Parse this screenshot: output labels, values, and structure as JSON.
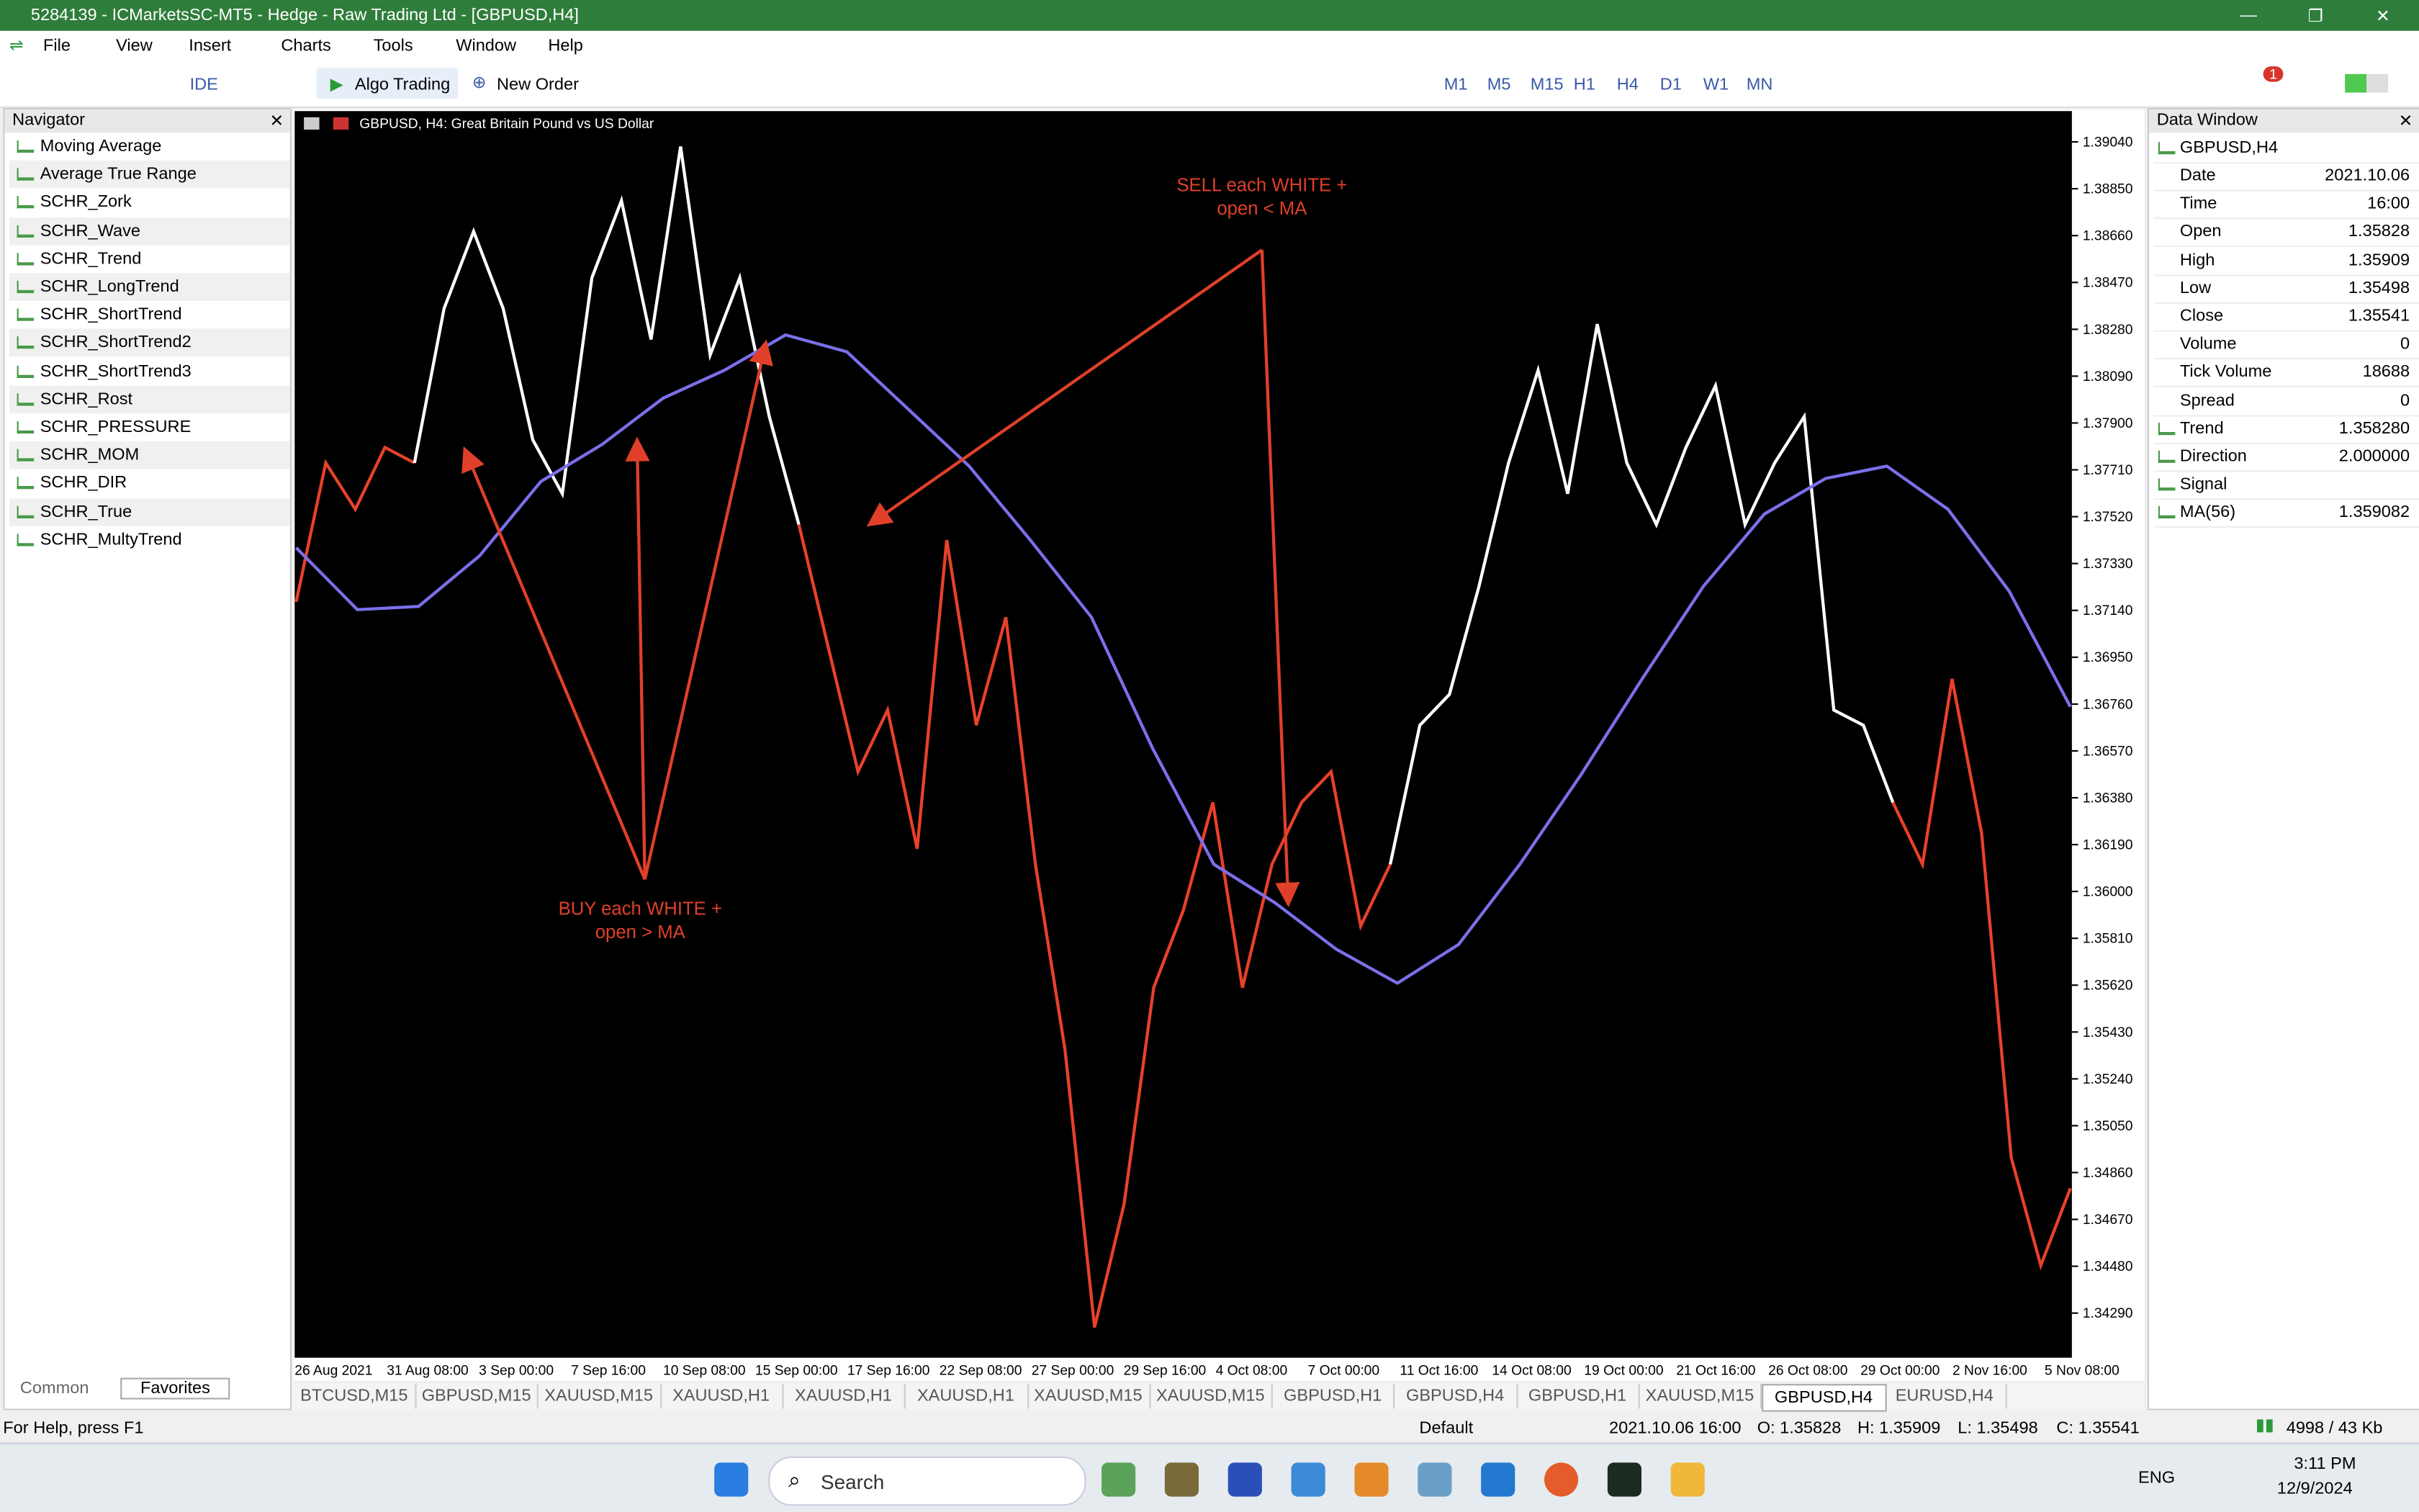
{
  "window": {
    "title": "5284139 - ICMarketsSC-MT5 - Hedge - Raw Trading Ltd - [GBPUSD,H4]"
  },
  "menu": [
    "File",
    "View",
    "Insert",
    "Charts",
    "Tools",
    "Window",
    "Help"
  ],
  "toolbar": {
    "ide": "IDE",
    "algo": "Algo Trading",
    "order": "New Order",
    "timeframes": [
      "M1",
      "M5",
      "M15",
      "H1",
      "H4",
      "D1",
      "W1",
      "MN"
    ],
    "notifications": 1
  },
  "navigator": {
    "title": "Navigator",
    "items": [
      "Moving Average",
      "Average True Range",
      "SCHR_Zork",
      "SCHR_Wave",
      "SCHR_Trend",
      "SCHR_LongTrend",
      "SCHR_ShortTrend",
      "SCHR_ShortTrend2",
      "SCHR_ShortTrend3",
      "SCHR_Rost",
      "SCHR_PRESSURE",
      "SCHR_MOM",
      "SCHR_DIR",
      "SCHR_True",
      "SCHR_MultyTrend"
    ],
    "tabs": [
      "Common",
      "Favorites"
    ]
  },
  "chart": {
    "header": "GBPUSD, H4:  Great Britain Pound vs US Dollar",
    "sell_note": [
      "SELL each WHITE +",
      "open < MA"
    ],
    "buy_note": [
      "BUY each WHITE +",
      "open > MA"
    ],
    "ylim": [
      1.34109,
      1.39165
    ],
    "yticks": [
      {
        "value": 1.3904,
        "label": "1.39040"
      },
      {
        "value": 1.3885,
        "label": "1.38850"
      },
      {
        "value": 1.3866,
        "label": "1.38660"
      },
      {
        "value": 1.3847,
        "label": "1.38470"
      },
      {
        "value": 1.3828,
        "label": "1.38280"
      },
      {
        "value": 1.3809,
        "label": "1.38090"
      },
      {
        "value": 1.379,
        "label": "1.37900"
      },
      {
        "value": 1.3771,
        "label": "1.37710"
      },
      {
        "value": 1.3752,
        "label": "1.37520"
      },
      {
        "value": 1.3733,
        "label": "1.37330"
      },
      {
        "value": 1.3714,
        "label": "1.37140"
      },
      {
        "value": 1.3695,
        "label": "1.36950"
      },
      {
        "value": 1.3676,
        "label": "1.36760"
      },
      {
        "value": 1.3657,
        "label": "1.36570"
      },
      {
        "value": 1.3638,
        "label": "1.36380"
      },
      {
        "value": 1.3619,
        "label": "1.36190"
      },
      {
        "value": 1.36,
        "label": "1.36000"
      },
      {
        "value": 1.3581,
        "label": "1.35810"
      },
      {
        "value": 1.3562,
        "label": "1.35620"
      },
      {
        "value": 1.3543,
        "label": "1.35430"
      },
      {
        "value": 1.3524,
        "label": "1.35240"
      },
      {
        "value": 1.3505,
        "label": "1.35050"
      },
      {
        "value": 1.3486,
        "label": "1.34860"
      },
      {
        "value": 1.3467,
        "label": "1.34670"
      },
      {
        "value": 1.3448,
        "label": "1.34480"
      },
      {
        "value": 1.3429,
        "label": "1.34290"
      }
    ],
    "x_labels": [
      "26 Aug 2021",
      "31 Aug 08:00",
      "3 Sep 00:00",
      "7 Sep 16:00",
      "10 Sep 08:00",
      "15 Sep 00:00",
      "17 Sep 16:00",
      "22 Sep 08:00",
      "27 Sep 00:00",
      "29 Sep 16:00",
      "4 Oct 08:00",
      "7 Oct 00:00",
      "11 Oct 16:00",
      "14 Oct 08:00",
      "19 Oct 00:00",
      "21 Oct 16:00",
      "26 Oct 08:00",
      "29 Oct 00:00",
      "2 Nov 16:00",
      "5 Nov 08:00"
    ],
    "price": [
      1.37175,
      1.37738,
      1.3755,
      1.37801,
      1.37738,
      1.38364,
      1.38677,
      1.38364,
      1.37832,
      1.37613,
      1.38489,
      1.38802,
      1.38239,
      1.39021,
      1.38176,
      1.38489,
      1.37926,
      1.37488,
      1.36987,
      1.36486,
      1.36736,
      1.36173,
      1.37425,
      1.36674,
      1.37112,
      1.3611,
      1.35359,
      1.34232,
      1.34733,
      1.3561,
      1.35923,
      1.36361,
      1.3561,
      1.3611,
      1.36361,
      1.36486,
      1.3586,
      1.3611,
      1.36674,
      1.36799,
      1.37237,
      1.37738,
      1.38114,
      1.37613,
      1.38301,
      1.37738,
      1.37488,
      1.37801,
      1.38051,
      1.37488,
      1.37738,
      1.37926,
      1.36736,
      1.36674,
      1.36361,
      1.3611,
      1.36862,
      1.36236,
      1.34921,
      1.34483,
      1.34796
    ],
    "price_colors": [
      "#e8412a",
      "#e8412a",
      "#e8412a",
      "#e8412a",
      "#e8412a",
      "#ffffff",
      "#ffffff",
      "#ffffff",
      "#ffffff",
      "#ffffff",
      "#ffffff",
      "#ffffff",
      "#ffffff",
      "#ffffff",
      "#ffffff",
      "#ffffff",
      "#ffffff",
      "#ffffff",
      "#e8412a",
      "#e8412a",
      "#e8412a",
      "#e8412a",
      "#e8412a",
      "#e8412a",
      "#e8412a",
      "#e8412a",
      "#e8412a",
      "#e8412a",
      "#e8412a",
      "#e8412a",
      "#e8412a",
      "#e8412a",
      "#e8412a",
      "#e8412a",
      "#e8412a",
      "#e8412a",
      "#e8412a",
      "#e8412a",
      "#ffffff",
      "#ffffff",
      "#ffffff",
      "#ffffff",
      "#ffffff",
      "#ffffff",
      "#ffffff",
      "#ffffff",
      "#ffffff",
      "#ffffff",
      "#ffffff",
      "#ffffff",
      "#ffffff",
      "#ffffff",
      "#ffffff",
      "#ffffff",
      "#ffffff",
      "#e8412a",
      "#e8412a",
      "#e8412a",
      "#e8412a",
      "#e8412a",
      "#e8412a"
    ],
    "ma": [
      1.37394,
      1.37143,
      1.37156,
      1.37362,
      1.37663,
      1.37813,
      1.38001,
      1.38114,
      1.38257,
      1.38189,
      1.37957,
      1.37725,
      1.37425,
      1.37112,
      1.3658,
      1.3611,
      1.35954,
      1.35766,
      1.35628,
      1.35785,
      1.3611,
      1.36473,
      1.36862,
      1.37237,
      1.37531,
      1.37675,
      1.37725,
      1.3755,
      1.37218,
      1.36749
    ],
    "ma_color": "#7b70ea"
  },
  "data_window": {
    "title": "Data Window",
    "symbol": "GBPUSD,H4",
    "rows": [
      {
        "label": "Date",
        "value": "2021.10.06"
      },
      {
        "label": "Time",
        "value": "16:00"
      },
      {
        "label": "Open",
        "value": 1.35828
      },
      {
        "label": "High",
        "value": 1.35909
      },
      {
        "label": "Low",
        "value": 1.35498
      },
      {
        "label": "Close",
        "value": 1.35541
      },
      {
        "label": "Volume",
        "value": 0
      },
      {
        "label": "Tick Volume",
        "value": 18688
      },
      {
        "label": "Spread",
        "value": 0
      },
      {
        "label": "Trend",
        "value": "1.358280"
      },
      {
        "label": "Direction",
        "value": "2.000000"
      },
      {
        "label": "Signal"
      },
      {
        "label": "MA(56)",
        "value": "1.359082"
      }
    ]
  },
  "symbol_tabs": [
    "BTCUSD,M15",
    "GBPUSD,M15",
    "XAUUSD,M15",
    "XAUUSD,H1",
    "XAUUSD,H1",
    "XAUUSD,H1",
    "XAUUSD,M15",
    "XAUUSD,M15",
    "GBPUSD,H1",
    "GBPUSD,H4",
    "GBPUSD,H1",
    "XAUUSD,M15",
    "GBPUSD,H4",
    "EURUSD,H4"
  ],
  "status": {
    "help": "For Help, press F1",
    "profile": "Default",
    "time": "2021.10.06 16:00",
    "open": "O: 1.35828",
    "high": "H: 1.35909",
    "low": "L: 1.35498",
    "close": "C: 1.35541",
    "traffic": "4998 / 43 Kb"
  },
  "taskbar": {
    "search": "Search",
    "lang": "ENG",
    "time": "3:11 PM",
    "date": "12/9/2024"
  }
}
